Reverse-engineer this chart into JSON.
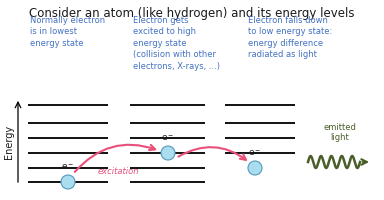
{
  "title": "Consider an atom (like hydrogen) and its energy levels",
  "title_fontsize": 8.5,
  "bg_color": "#ffffff",
  "text_color_blue": "#4472c4",
  "text_color_dark": "#1a1a1a",
  "text_color_green": "#4a5e2a",
  "text_color_pink": "#e8507a",
  "ylabel": "Energy",
  "ylabel_fontsize": 7,
  "col1_text": "Normally electron\nis in lowest\nenergy state",
  "col2_text": "Electron gets\nexcited to high\nenergy state\n(collision with other\nelectrons, X-rays, ...)",
  "col3_text": "Electron falls down\nto low energy state:\nenergy difference\nradiated as light",
  "level_color": "#111111",
  "level_lw": 1.4,
  "electron_color": "#aaddee",
  "electron_edge_color": "#5599bb",
  "arrow_color": "#e8507a",
  "wave_color": "#4a5e2a",
  "excitation_text": "excitation",
  "emitted_text": "emitted\nlight"
}
